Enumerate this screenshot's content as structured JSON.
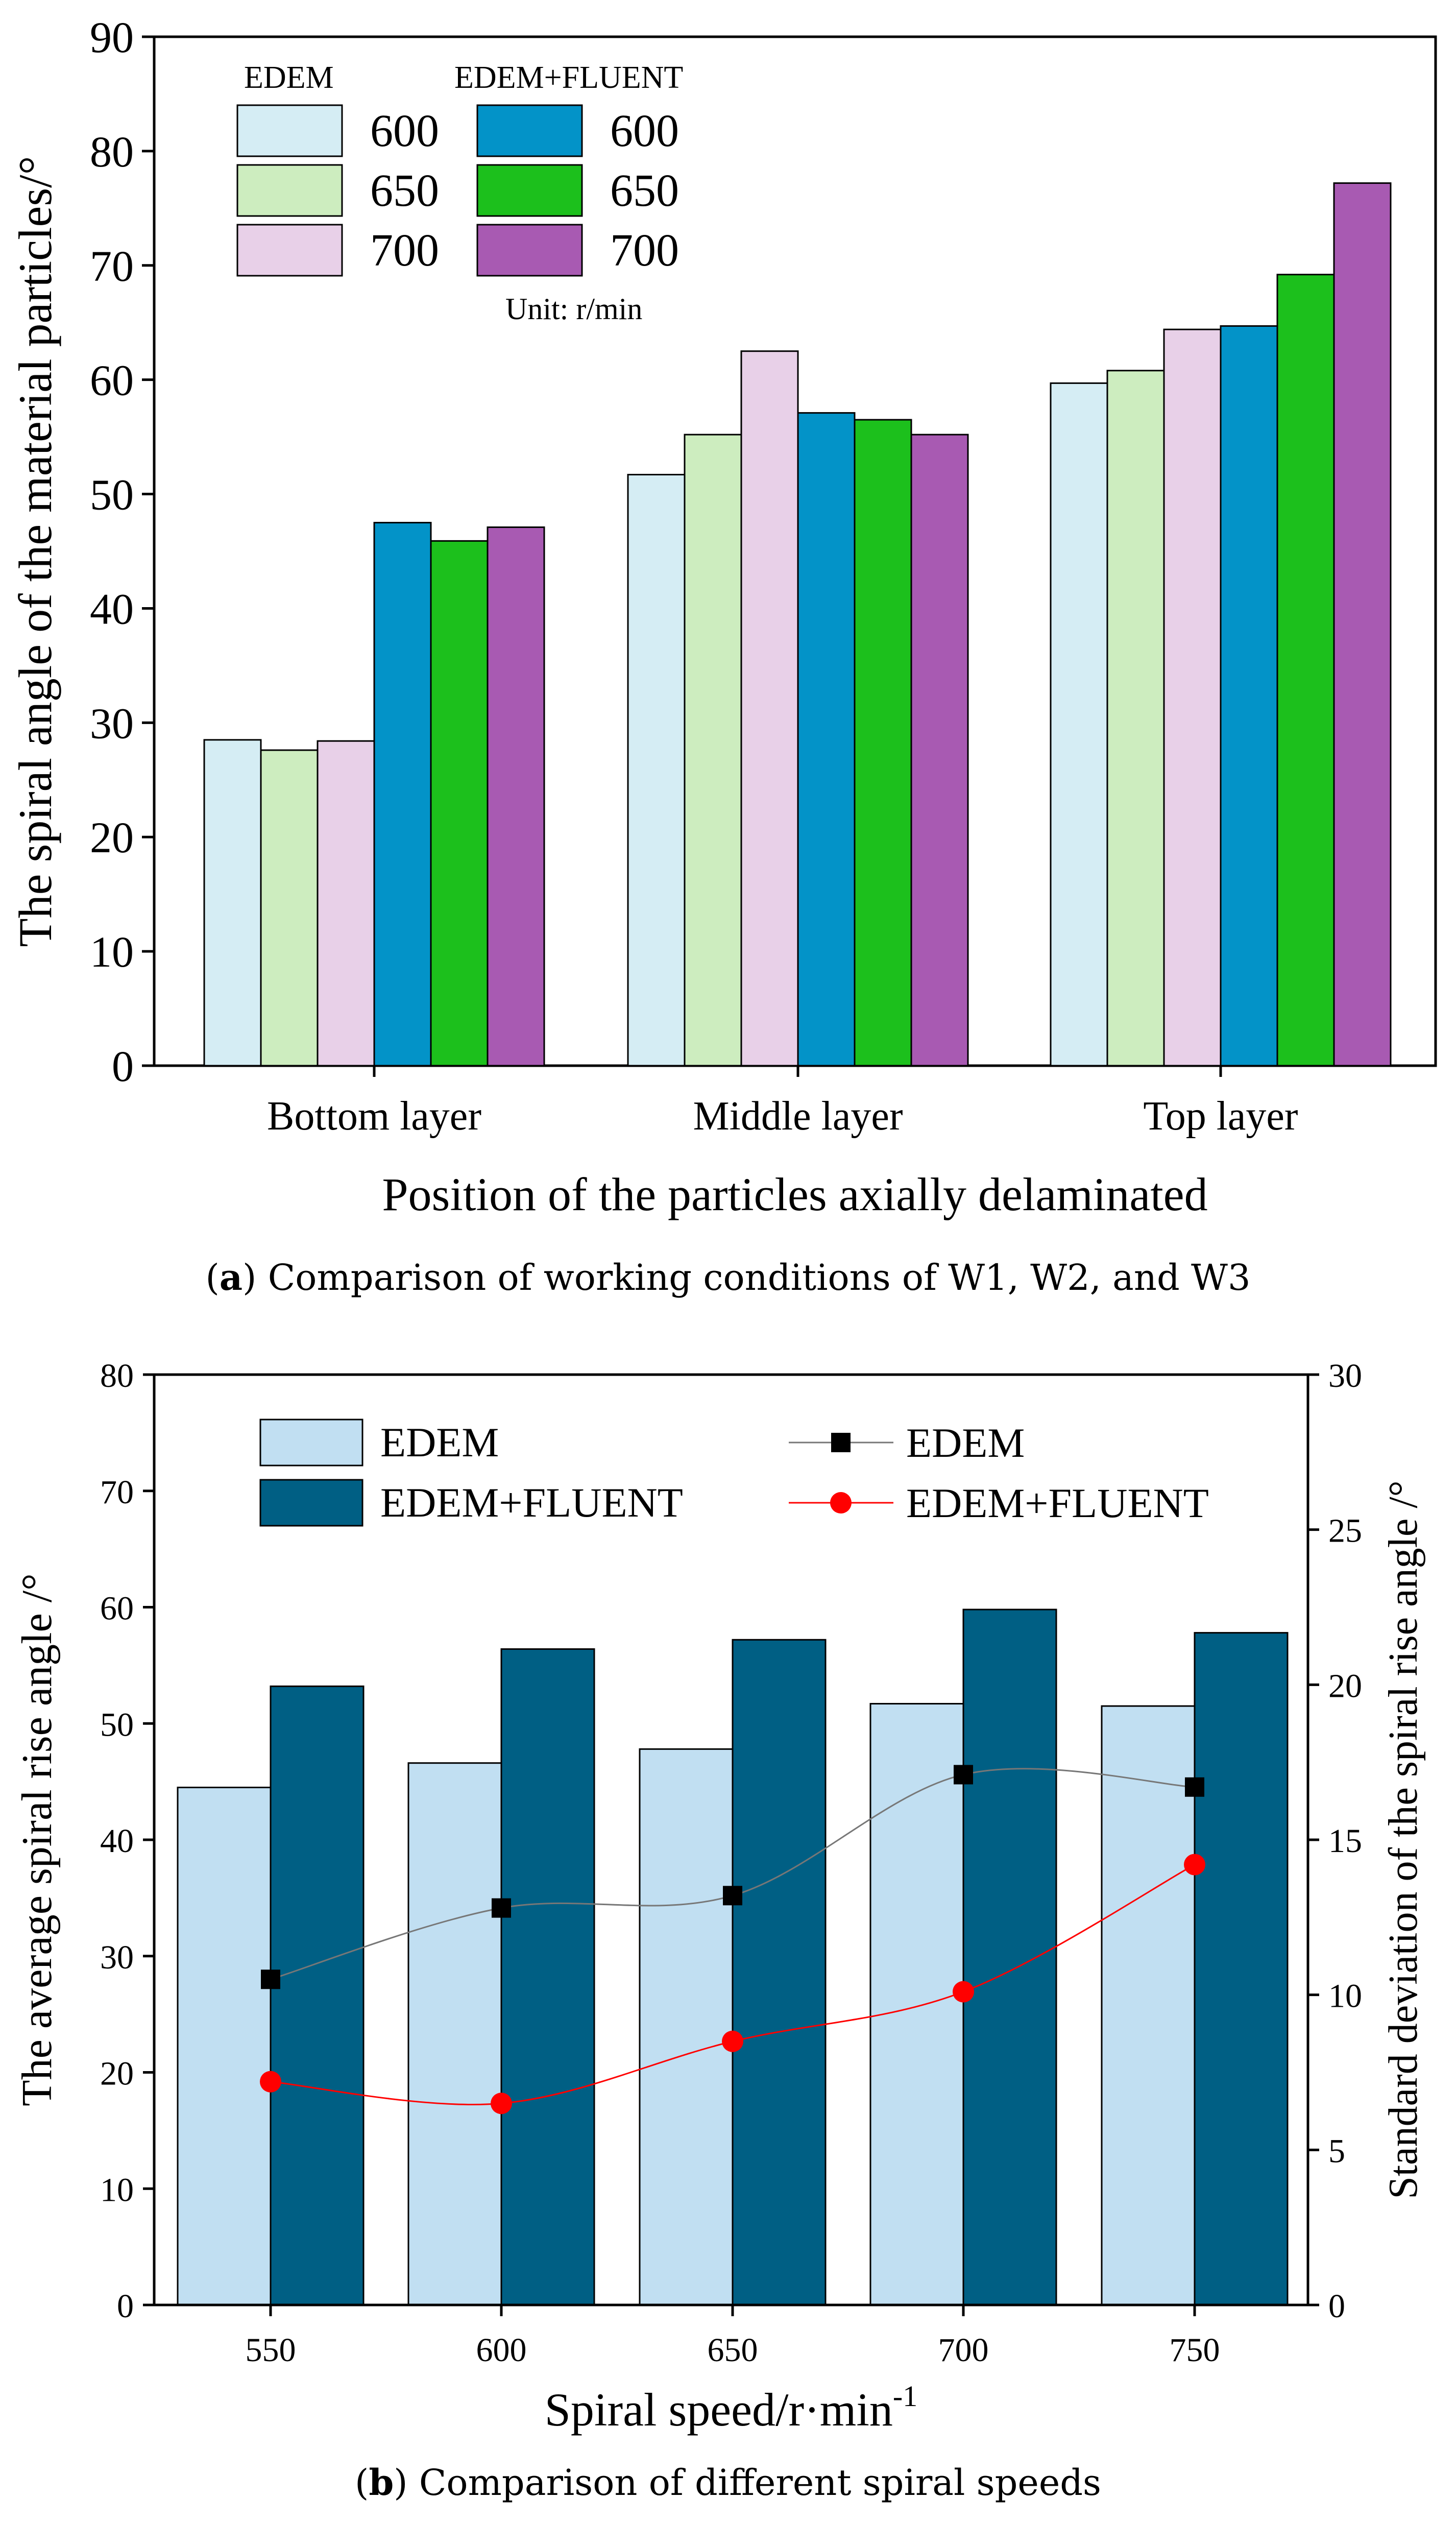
{
  "chart_data": [
    {
      "id": "a",
      "type": "bar",
      "caption": {
        "label": "a",
        "text": "Comparison of working conditions of W1, W2, and W3"
      },
      "ylabel": "The spiral angle of the material particles/°",
      "xlabel": "Position of the particles axially delaminated",
      "ylim": [
        0,
        90
      ],
      "yticks": [
        "0",
        "10",
        "20",
        "30",
        "40",
        "50",
        "60",
        "70",
        "80",
        "90"
      ],
      "categories": [
        "Bottom layer",
        "Middle layer",
        "Top layer"
      ],
      "legend": {
        "group_labels": [
          "EDEM",
          "EDEM+FLUENT"
        ],
        "unit": "Unit: r/min",
        "placement": "top-left"
      },
      "series": [
        {
          "name": "600",
          "group": "EDEM",
          "color": "#d5edf4",
          "values": [
            28.5,
            51.7,
            59.7
          ]
        },
        {
          "name": "650",
          "group": "EDEM",
          "color": "#cdedbf",
          "values": [
            27.6,
            55.2,
            60.8
          ]
        },
        {
          "name": "700",
          "group": "EDEM",
          "color": "#e8d0e8",
          "values": [
            28.4,
            62.5,
            64.4
          ]
        },
        {
          "name": "600",
          "group": "EDEM+FLUENT",
          "color": "#0393c8",
          "values": [
            47.5,
            57.1,
            64.7
          ]
        },
        {
          "name": "650",
          "group": "EDEM+FLUENT",
          "color": "#1cc01c",
          "values": [
            45.9,
            56.5,
            69.2
          ]
        },
        {
          "name": "700",
          "group": "EDEM+FLUENT",
          "color": "#a85ab2",
          "values": [
            47.1,
            55.2,
            77.2
          ]
        }
      ]
    },
    {
      "id": "b",
      "type": "bar",
      "caption": {
        "label": "b",
        "text": "Comparison of different spiral speeds"
      },
      "ylabel": "The average spiral rise angle /°",
      "y2label": "Standard deviation of the spiral rise angle /°",
      "xlabel_main": "Spiral speed/r·min",
      "xlabel_sup": "-1",
      "ylim": [
        0,
        80
      ],
      "y2lim": [
        0,
        30
      ],
      "yticks": [
        "0",
        "10",
        "20",
        "30",
        "40",
        "50",
        "60",
        "70",
        "80"
      ],
      "y2ticks": [
        "0",
        "5",
        "10",
        "15",
        "20",
        "25",
        "30"
      ],
      "categories": [
        "550",
        "600",
        "650",
        "700",
        "750"
      ],
      "bar_series": [
        {
          "name": "EDEM",
          "color": "#c1dff2",
          "values": [
            44.5,
            46.6,
            47.8,
            51.7,
            51.5
          ]
        },
        {
          "name": "EDEM+FLUENT",
          "color": "#005f84",
          "values": [
            53.2,
            56.4,
            57.2,
            59.8,
            57.8
          ]
        }
      ],
      "line_series": [
        {
          "name": "EDEM",
          "axis": "right",
          "color": "#000000",
          "line_color": "#777777",
          "marker": "square",
          "values": [
            10.5,
            12.8,
            13.2,
            17.1,
            16.7
          ]
        },
        {
          "name": "EDEM+FLUENT",
          "axis": "right",
          "color": "#ff0000",
          "line_color": "#ff0000",
          "marker": "circle",
          "values": [
            7.2,
            6.5,
            8.5,
            10.1,
            14.2
          ]
        }
      ]
    }
  ]
}
